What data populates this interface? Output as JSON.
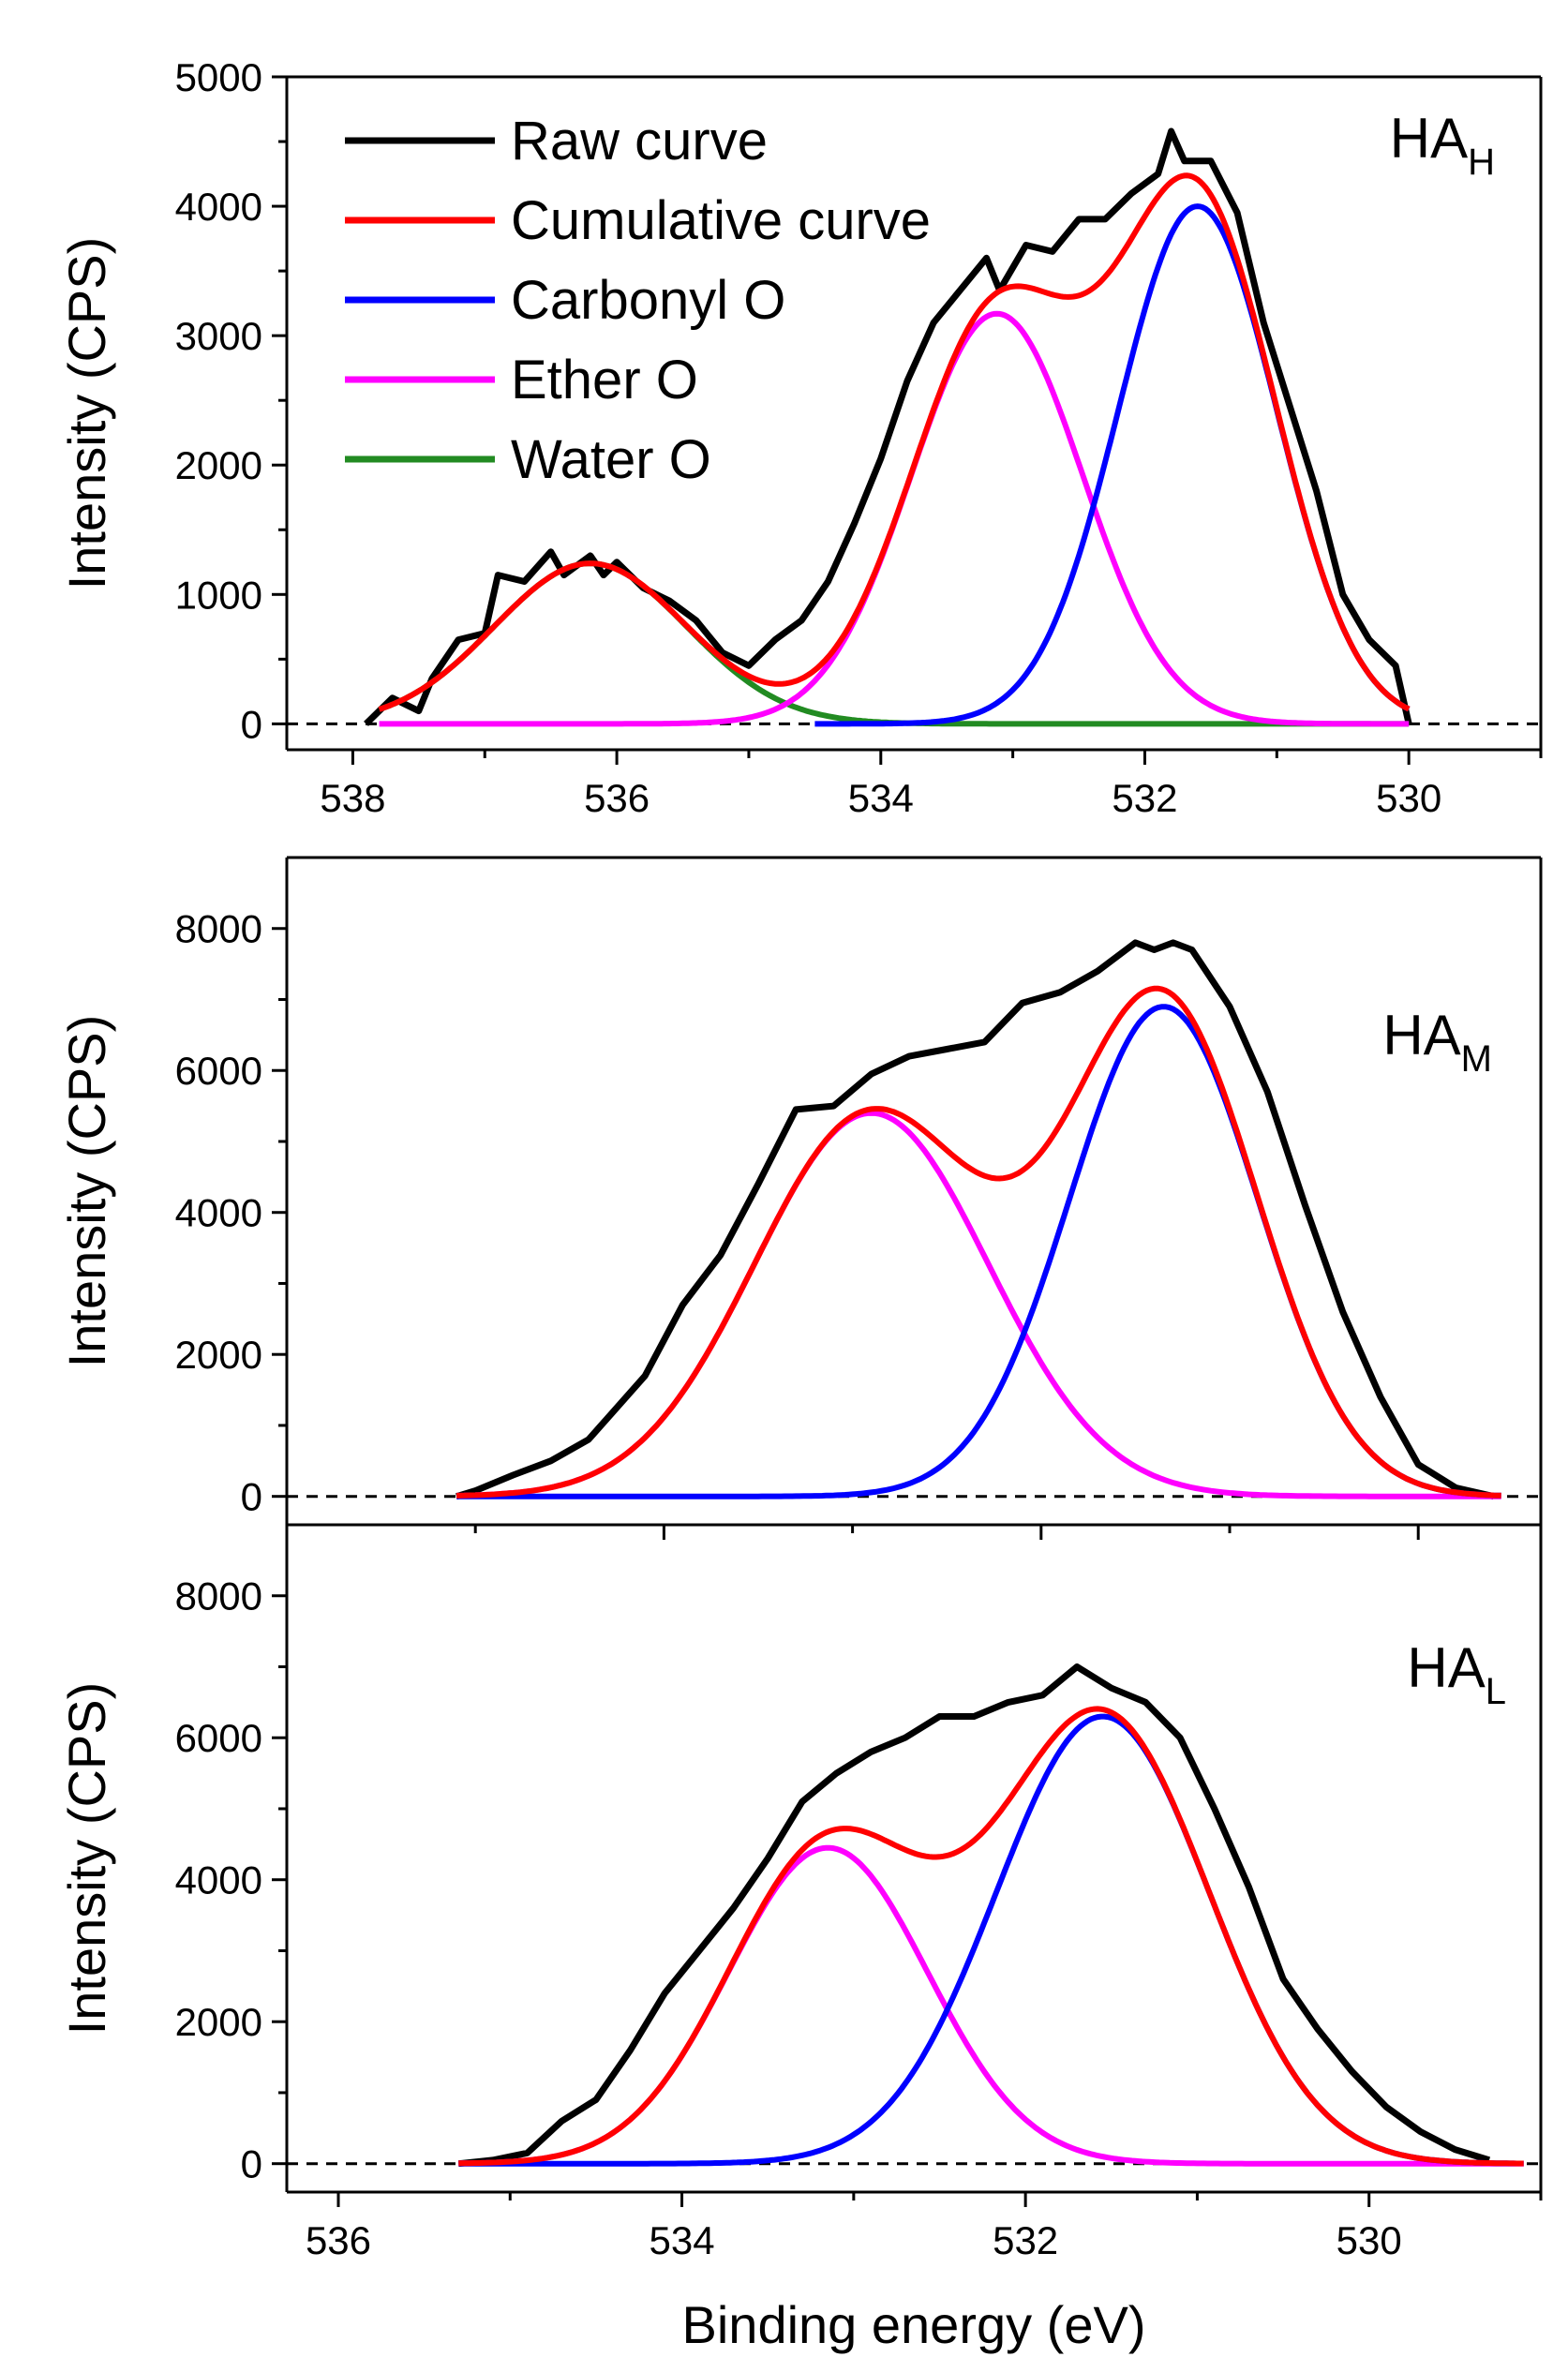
{
  "chart_data": [
    {
      "type": "line",
      "panel_label": "HA",
      "panel_subscript": "H",
      "xlabel": "",
      "ylabel": "Intensity (CPS)",
      "xlim": [
        529,
        538.5
      ],
      "ylim": [
        -200,
        5000
      ],
      "x_reversed": true,
      "x_ticks": [
        538,
        536,
        534,
        532,
        530
      ],
      "x_tick_labels": [
        "538",
        "536",
        "534",
        "532",
        "530"
      ],
      "y_ticks": [
        0,
        1000,
        2000,
        3000,
        4000,
        5000
      ],
      "y_tick_labels": [
        "0",
        "1000",
        "2000",
        "3000",
        "4000",
        "5000"
      ],
      "baseline": 0,
      "legend": [
        "Raw curve",
        "Cumulative curve",
        "Carbonyl O",
        "Ether O",
        "Water O"
      ],
      "legend_position": "top-left",
      "series": [
        {
          "name": "Raw curve",
          "color": "#000000",
          "x": [
            537.9,
            537.7,
            537.5,
            537.4,
            537.2,
            537.0,
            536.9,
            536.7,
            536.5,
            536.4,
            536.2,
            536.1,
            536.0,
            535.8,
            535.6,
            535.4,
            535.2,
            535.0,
            534.8,
            534.6,
            534.4,
            534.2,
            534.0,
            533.8,
            533.6,
            533.4,
            533.2,
            533.1,
            532.9,
            532.7,
            532.5,
            532.3,
            532.1,
            531.9,
            531.8,
            531.7,
            531.5,
            531.3,
            531.1,
            530.9,
            530.7,
            530.5,
            530.3,
            530.1,
            530.0
          ],
          "y": [
            0,
            200,
            100,
            350,
            650,
            700,
            1150,
            1100,
            1330,
            1150,
            1300,
            1150,
            1250,
            1050,
            950,
            800,
            550,
            450,
            650,
            800,
            1100,
            1550,
            2050,
            2650,
            3100,
            3350,
            3600,
            3350,
            3700,
            3650,
            3900,
            3900,
            4100,
            4250,
            4580,
            4350,
            4350,
            3950,
            3100,
            2450,
            1800,
            1000,
            650,
            450,
            0
          ]
        },
        {
          "name": "Cumulative curve",
          "color": "#ff0000",
          "components": [
            "Carbonyl O",
            "Ether O",
            "Water O"
          ]
        },
        {
          "name": "Carbonyl O",
          "color": "#0000ff",
          "center": 531.6,
          "amplitude": 4000,
          "sigma": 0.6,
          "x_range": [
            530.0,
            534.5
          ]
        },
        {
          "name": "Ether O",
          "color": "#ff00ff",
          "center": 533.12,
          "amplitude": 3170,
          "sigma": 0.65,
          "x_range": [
            530.0,
            537.8
          ]
        },
        {
          "name": "Water O",
          "color": "#228b22",
          "center": 536.2,
          "amplitude": 1240,
          "sigma": 0.73,
          "x_range": [
            530.0,
            537.8
          ]
        }
      ]
    },
    {
      "type": "line",
      "panel_label": "HA",
      "panel_subscript": "M",
      "xlabel": "",
      "ylabel": "Intensity (CPS)",
      "xlim": [
        529.35,
        536.0
      ],
      "ylim": [
        -400,
        9000
      ],
      "x_reversed": true,
      "y_ticks": [
        0,
        2000,
        4000,
        6000,
        8000
      ],
      "y_tick_labels": [
        "0",
        "2000",
        "4000",
        "6000",
        "8000"
      ],
      "baseline": 0,
      "series": [
        {
          "name": "Raw curve",
          "color": "#000000",
          "x": [
            535.1,
            535.0,
            534.8,
            534.6,
            534.4,
            534.3,
            534.1,
            533.9,
            533.7,
            533.5,
            533.3,
            533.1,
            532.9,
            532.7,
            532.5,
            532.3,
            532.1,
            531.9,
            531.7,
            531.5,
            531.4,
            531.3,
            531.2,
            531.0,
            530.8,
            530.6,
            530.4,
            530.2,
            530.0,
            529.8,
            529.6
          ],
          "y": [
            0,
            80,
            300,
            500,
            800,
            1100,
            1700,
            2700,
            3400,
            4400,
            5450,
            5500,
            5950,
            6200,
            6300,
            6400,
            6950,
            7100,
            7400,
            7800,
            7700,
            7800,
            7700,
            6900,
            5700,
            4100,
            2600,
            1400,
            450,
            120,
            0
          ]
        },
        {
          "name": "Cumulative curve",
          "color": "#ff0000",
          "components": [
            "Carbonyl O",
            "Ether O"
          ]
        },
        {
          "name": "Carbonyl O",
          "color": "#0000ff",
          "center": 531.35,
          "amplitude": 6900,
          "sigma": 0.5,
          "x_range": [
            529.55,
            535.1
          ]
        },
        {
          "name": "Ether O",
          "color": "#ff00ff",
          "center": 532.9,
          "amplitude": 5400,
          "sigma": 0.62,
          "x_range": [
            529.55,
            535.1
          ]
        }
      ]
    },
    {
      "type": "line",
      "panel_label": "HA",
      "panel_subscript": "L",
      "xlabel": "Binding energy (eV)",
      "ylabel": "Intensity (CPS)",
      "xlim": [
        529.0,
        536.3
      ],
      "ylim": [
        -400,
        9000
      ],
      "x_reversed": true,
      "x_ticks": [
        536,
        534,
        532,
        530
      ],
      "x_tick_labels": [
        "536",
        "534",
        "532",
        "530"
      ],
      "y_ticks": [
        0,
        2000,
        4000,
        6000,
        8000
      ],
      "y_tick_labels": [
        "0",
        "2000",
        "4000",
        "6000",
        "8000"
      ],
      "baseline": 0,
      "series": [
        {
          "name": "Raw curve",
          "color": "#000000",
          "x": [
            535.3,
            535.1,
            534.9,
            534.7,
            534.5,
            534.3,
            534.1,
            533.9,
            533.7,
            533.5,
            533.3,
            533.1,
            532.9,
            532.7,
            532.5,
            532.3,
            532.1,
            531.9,
            531.7,
            531.5,
            531.3,
            531.1,
            530.9,
            530.7,
            530.5,
            530.3,
            530.1,
            529.9,
            529.7,
            529.5,
            529.3
          ],
          "y": [
            0,
            50,
            150,
            600,
            900,
            1600,
            2400,
            3000,
            3600,
            4300,
            5100,
            5500,
            5800,
            6000,
            6300,
            6300,
            6500,
            6600,
            7000,
            6700,
            6500,
            6000,
            5000,
            3900,
            2600,
            1900,
            1300,
            800,
            450,
            200,
            50
          ]
        },
        {
          "name": "Cumulative curve",
          "color": "#ff0000",
          "components": [
            "Carbonyl O",
            "Ether O"
          ]
        },
        {
          "name": "Carbonyl O",
          "color": "#0000ff",
          "center": 531.55,
          "amplitude": 6300,
          "sigma": 0.62,
          "x_range": [
            529.1,
            535.3
          ]
        },
        {
          "name": "Ether O",
          "color": "#ff00ff",
          "center": 533.15,
          "amplitude": 4450,
          "sigma": 0.58,
          "x_range": [
            529.1,
            535.3
          ]
        }
      ]
    }
  ]
}
